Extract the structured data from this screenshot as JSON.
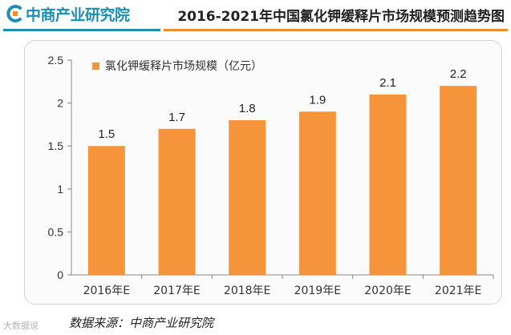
{
  "header": {
    "logo_text": "中商产业研究院",
    "title": "2016-2021年中国氯化钾缓释片市场规模预测趋势图"
  },
  "colors": {
    "bar": "#f5943a",
    "brand_blue": "#1d8fb4",
    "accent_orange": "#f08c2e"
  },
  "chart_data": {
    "type": "bar",
    "categories": [
      "2016年E",
      "2017年E",
      "2018年E",
      "2019年E",
      "2020年E",
      "2021年E"
    ],
    "series": [
      {
        "name": "氯化钾缓释片市场规模（亿元）",
        "values": [
          1.5,
          1.7,
          1.8,
          1.9,
          2.1,
          2.2
        ]
      }
    ],
    "data_labels": [
      "1.5",
      "1.7",
      "1.8",
      "1.9",
      "2.1",
      "2.2"
    ],
    "yticks": [
      "0",
      "0.5",
      "1",
      "1.5",
      "2",
      "2.5"
    ],
    "ylim": [
      0,
      2.5
    ],
    "grid": false,
    "legend": "top-left",
    "xlabel": "",
    "ylabel": ""
  },
  "footer": {
    "source": "数据来源：中商产业研究院",
    "watermark": "大数据说"
  }
}
